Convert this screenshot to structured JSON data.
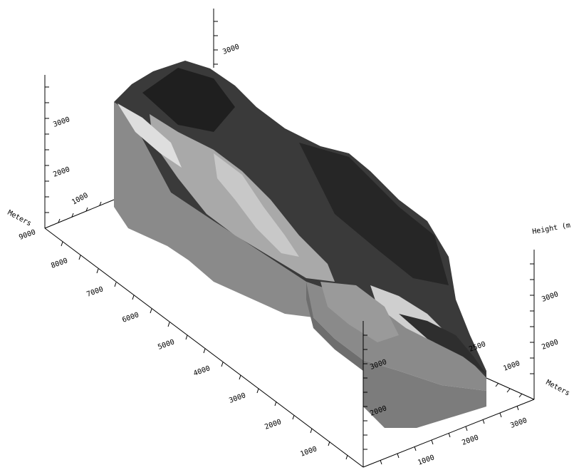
{
  "axes": {
    "left_vertical": {
      "title": "Meters",
      "ticks": [
        "1000",
        "2000",
        "3000"
      ]
    },
    "top_vertical": {
      "ticks": [
        "3000"
      ]
    },
    "right_vertical": {
      "title": "Height (m",
      "ticks": [
        "2000",
        "3000"
      ]
    },
    "front_vertical": {
      "ticks": [
        "2000",
        "3000"
      ]
    },
    "long_axis": {
      "ticks": [
        "9000",
        "8000",
        "7000",
        "6000",
        "5000",
        "4000",
        "3000",
        "2000",
        "1000"
      ]
    },
    "short_axis_front": {
      "ticks": [
        "1000",
        "2000",
        "3000"
      ]
    },
    "short_axis_right": {
      "title": "Meters",
      "ticks": [
        "1000",
        "2500"
      ]
    }
  },
  "colors": {
    "side_wall": "#8a8a8a",
    "side_wall_dark": "#6e6e6e",
    "terrain_dark": "#2b2b2b",
    "terrain_mid": "#5a5a5a",
    "glacier": "#bdbdbd",
    "snow": "#e8e8e8"
  }
}
